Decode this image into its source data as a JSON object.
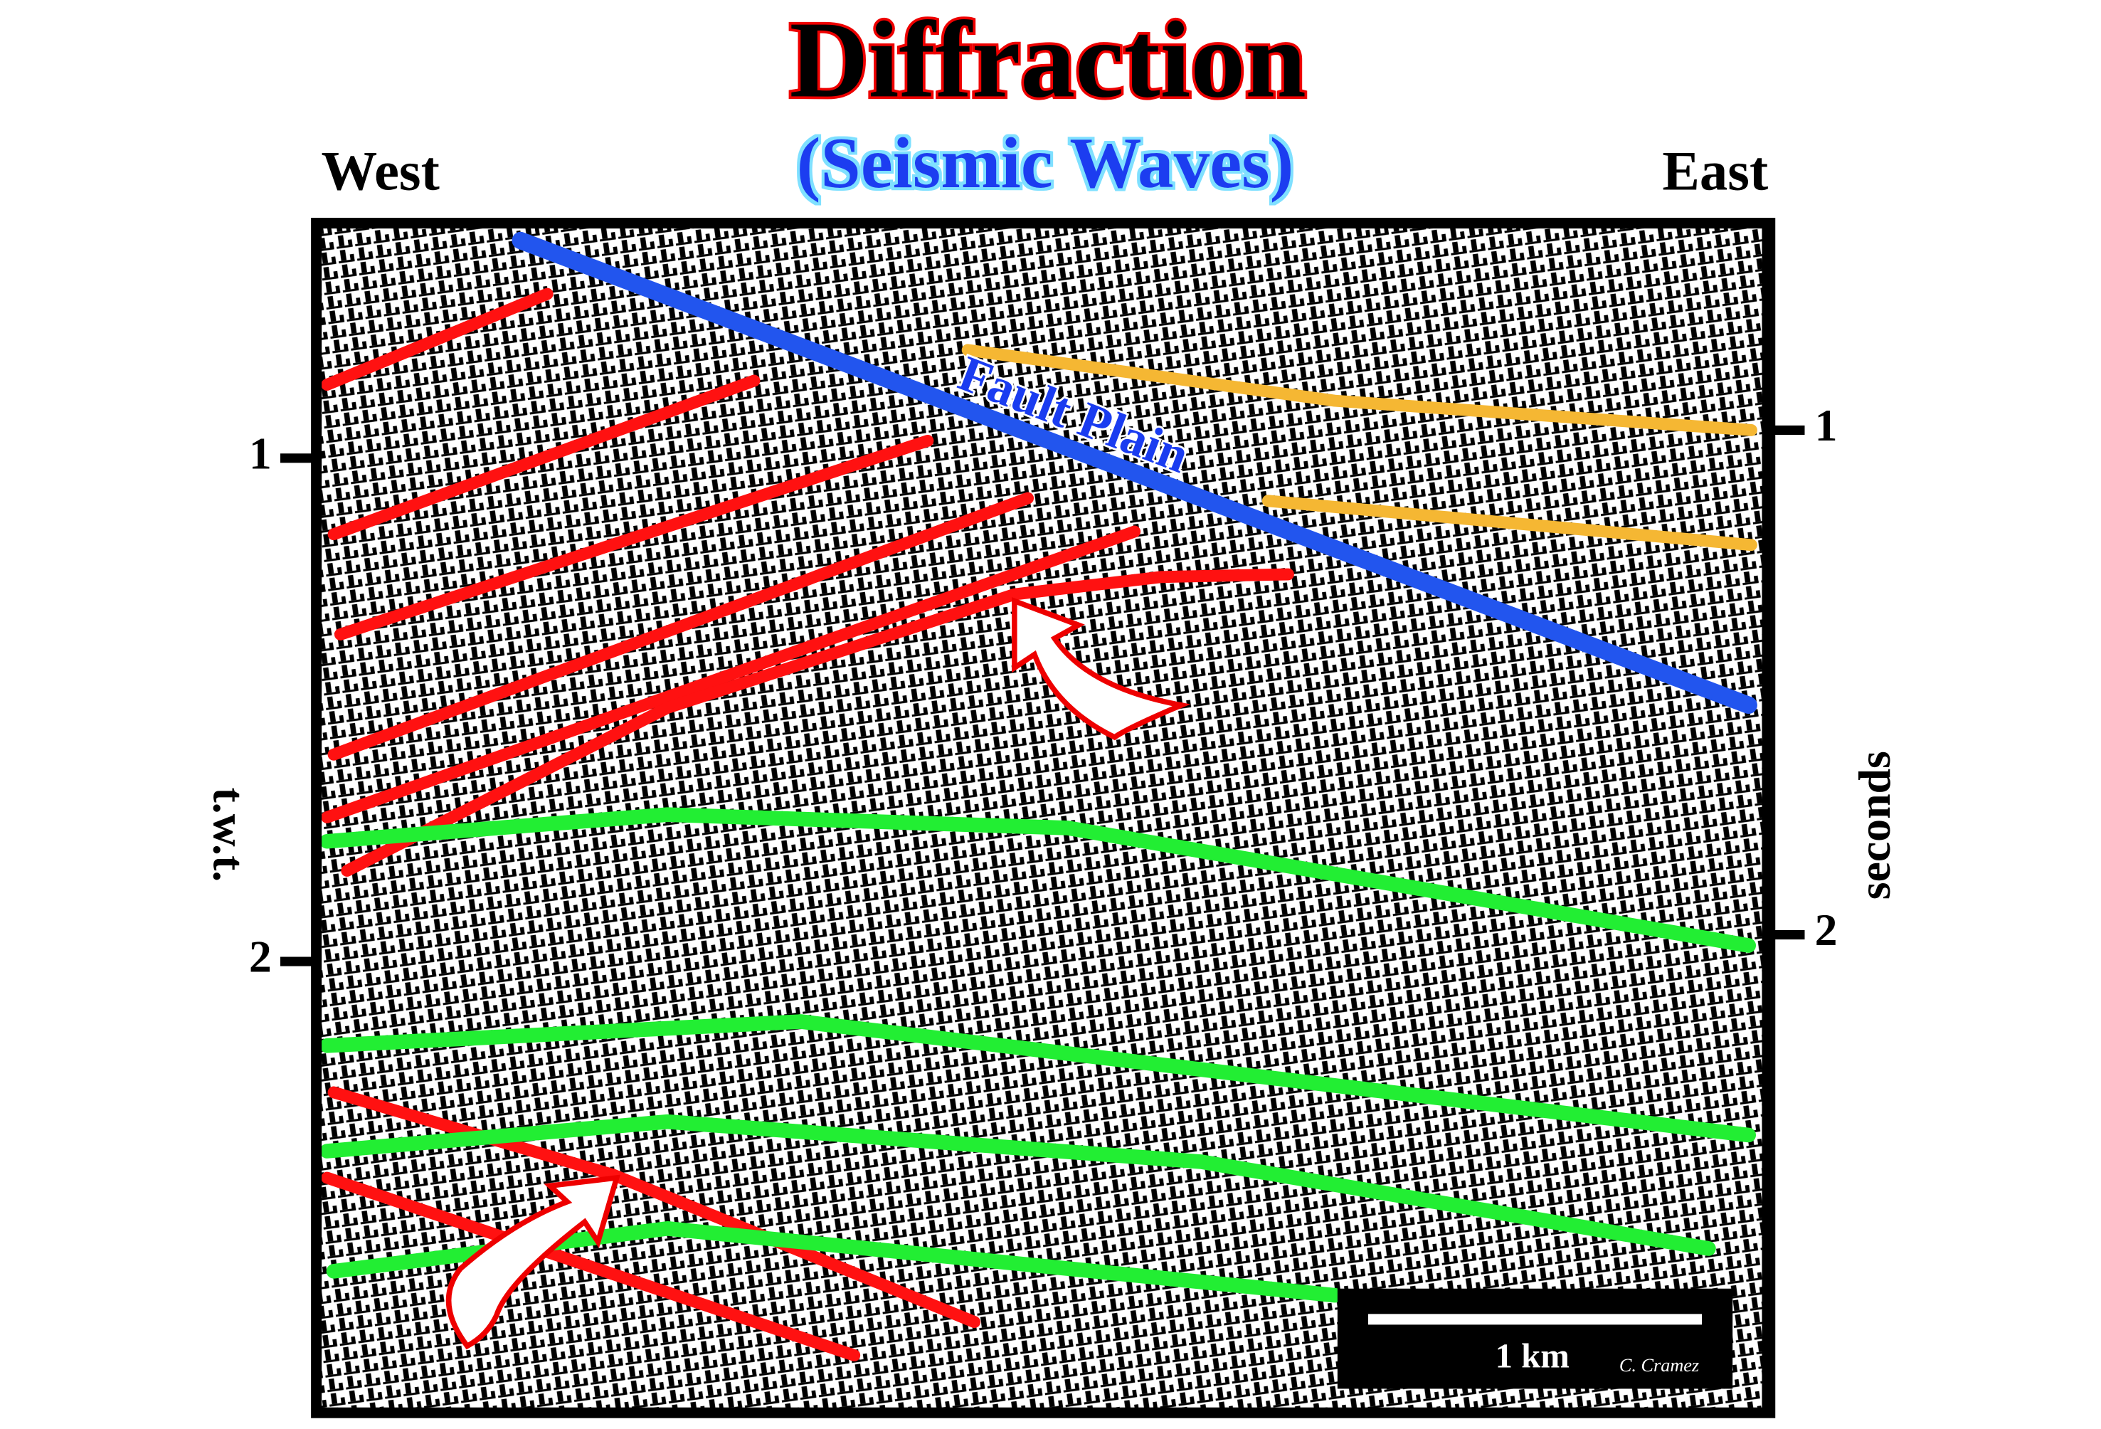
{
  "title": "Diffraction",
  "subtitle": "(Seismic Waves)",
  "west": "West",
  "east": "East",
  "left_axis": {
    "label": "t.w.t.",
    "ticks": [
      "1",
      "2"
    ]
  },
  "right_axis": {
    "label": "seconds",
    "ticks": [
      "1",
      "2"
    ]
  },
  "fault_label": "Fault Plain",
  "scale_bar": {
    "label": "1 km",
    "credit": "C. Cramez"
  }
}
